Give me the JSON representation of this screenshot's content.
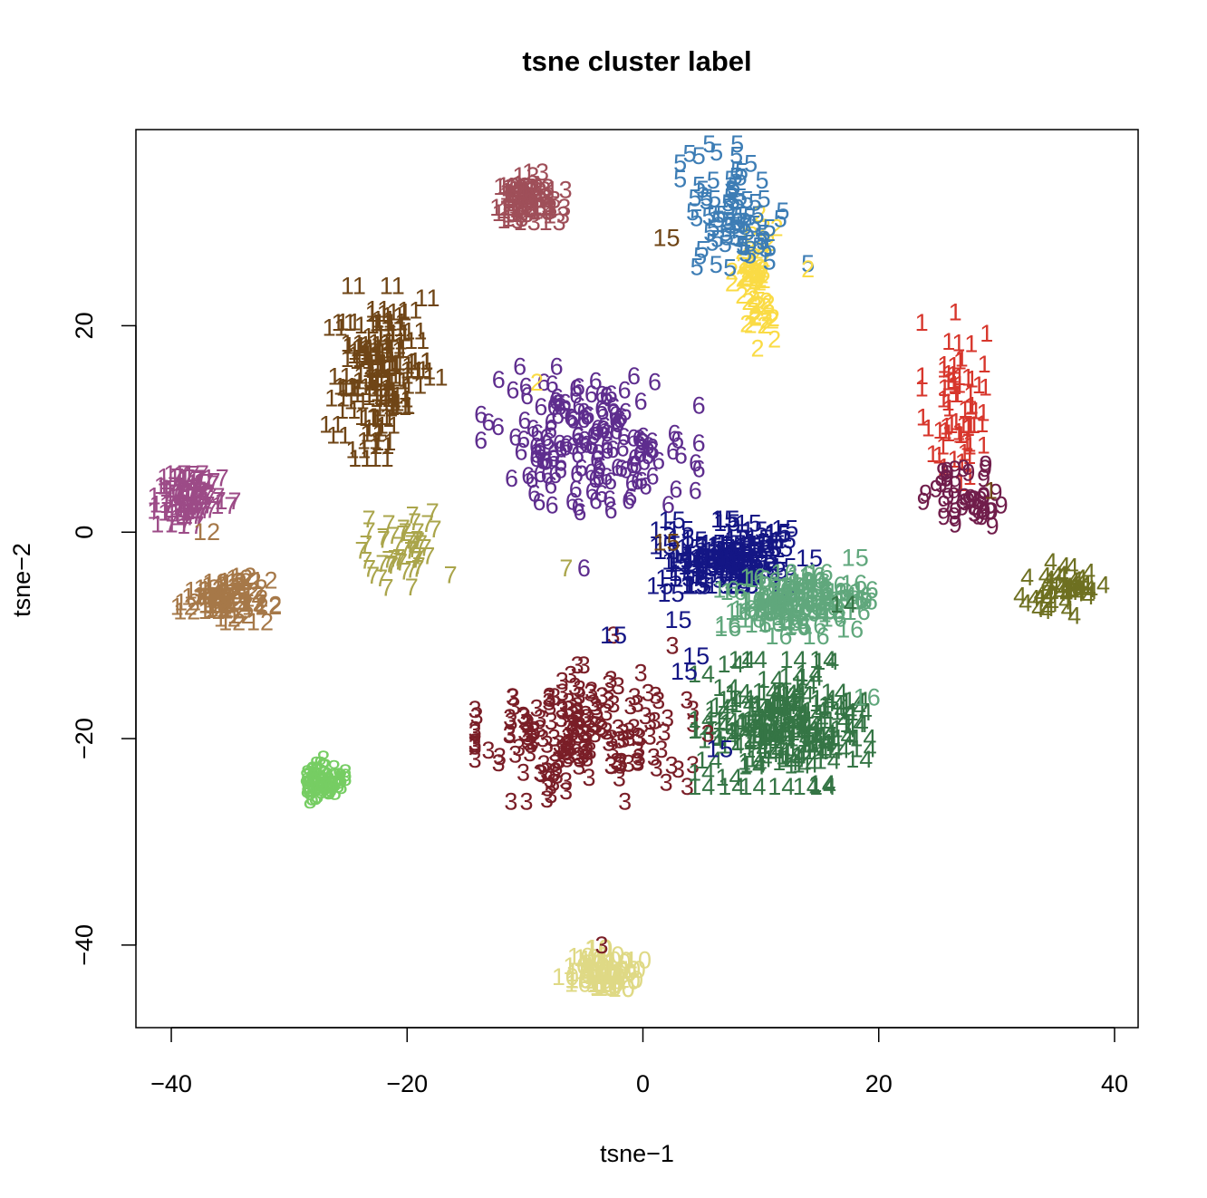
{
  "chart_data": {
    "type": "scatter",
    "title": "tsne cluster label",
    "xlabel": "tsne−1",
    "ylabel": "tsne−2",
    "xlim": [
      -43,
      42
    ],
    "ylim": [
      -48,
      39
    ],
    "xticks": [
      -40,
      -20,
      0,
      20,
      40
    ],
    "yticks": [
      -40,
      -20,
      0,
      20
    ],
    "xtick_labels": [
      "−40",
      "−20",
      "0",
      "20",
      "40"
    ],
    "ytick_labels": [
      "−40",
      "−20",
      "0",
      "20"
    ],
    "grid": false,
    "legend": "none",
    "marker": "cluster-number-text",
    "clusters": [
      {
        "label": "1",
        "color": "#d7362c",
        "cx": 26.5,
        "cy": 12.5,
        "sx": 1.3,
        "sy": 4.0,
        "n": 70
      },
      {
        "label": "2",
        "color": "#fadb45",
        "cx": 9.5,
        "cy": 24.5,
        "sx": 0.9,
        "sy": 3.2,
        "n": 60
      },
      {
        "label": "3",
        "color": "#7a1e27",
        "cx": -5.0,
        "cy": -19.5,
        "sx": 4.2,
        "sy": 3.0,
        "n": 190
      },
      {
        "label": "4",
        "color": "#6e7021",
        "cx": 35.5,
        "cy": -5.5,
        "sx": 1.9,
        "sy": 1.2,
        "n": 55
      },
      {
        "label": "5",
        "color": "#3d7db5",
        "cx": 8.0,
        "cy": 31.0,
        "sx": 2.2,
        "sy": 3.0,
        "n": 85
      },
      {
        "label": "6",
        "color": "#5e2d8e",
        "cx": -4.5,
        "cy": 9.0,
        "sx": 4.2,
        "sy": 3.2,
        "n": 170
      },
      {
        "label": "7",
        "color": "#aaa54b",
        "cx": -20.5,
        "cy": -2.0,
        "sx": 1.9,
        "sy": 1.8,
        "n": 50
      },
      {
        "label": "8",
        "color": "#76cd63",
        "cx": -27.0,
        "cy": -24.0,
        "sx": 0.8,
        "sy": 0.9,
        "n": 55
      },
      {
        "label": "9",
        "color": "#701d4b",
        "cx": 27.5,
        "cy": 3.5,
        "sx": 1.8,
        "sy": 1.5,
        "n": 45
      },
      {
        "label": "10",
        "color": "#dfd985",
        "cx": -3.5,
        "cy": -42.5,
        "sx": 1.4,
        "sy": 1.0,
        "n": 50
      },
      {
        "label": "11",
        "color": "#6f4516",
        "cx": -22.0,
        "cy": 15.5,
        "sx": 2.0,
        "sy": 3.8,
        "n": 110
      },
      {
        "label": "12",
        "color": "#a67848",
        "cx": -35.5,
        "cy": -6.5,
        "sx": 1.7,
        "sy": 1.0,
        "n": 60
      },
      {
        "label": "13",
        "color": "#9f4f59",
        "cx": -10.0,
        "cy": 32.0,
        "sx": 1.3,
        "sy": 1.3,
        "n": 50
      },
      {
        "label": "14",
        "color": "#357545",
        "cx": 12.0,
        "cy": -18.5,
        "sx": 3.2,
        "sy": 2.8,
        "n": 150
      },
      {
        "label": "15",
        "color": "#141685",
        "cx": 7.5,
        "cy": -2.5,
        "sx": 3.0,
        "sy": 1.7,
        "n": 110
      },
      {
        "label": "16",
        "color": "#60a77c",
        "cx": 13.0,
        "cy": -7.0,
        "sx": 3.0,
        "sy": 1.4,
        "n": 95
      },
      {
        "label": "17",
        "color": "#9c4b87",
        "cx": -38.5,
        "cy": 3.5,
        "sx": 1.5,
        "sy": 1.3,
        "n": 55
      }
    ],
    "outliers": [
      {
        "label": "15",
        "color": "#6f4516",
        "x": 2.0,
        "y": 28.5
      },
      {
        "label": "5",
        "color": "#3d7db5",
        "x": 14.0,
        "y": 26.0
      },
      {
        "label": "2",
        "color": "#fadb45",
        "x": 14.0,
        "y": 25.5
      },
      {
        "label": "2",
        "color": "#fadb45",
        "x": 11.0,
        "y": 20.5
      },
      {
        "label": "15",
        "color": "#6f4516",
        "x": 2.0,
        "y": -1.0
      },
      {
        "label": "7",
        "color": "#aaa54b",
        "x": -6.5,
        "y": -3.5
      },
      {
        "label": "6",
        "color": "#5e2d8e",
        "x": -5.0,
        "y": -3.5
      },
      {
        "label": "3",
        "color": "#7a1e27",
        "x": -2.5,
        "y": -10.0
      },
      {
        "label": "15",
        "color": "#141685",
        "x": -2.5,
        "y": -10.0
      },
      {
        "label": "3",
        "color": "#7a1e27",
        "x": 2.5,
        "y": -11.0
      },
      {
        "label": "15",
        "color": "#141685",
        "x": 3.0,
        "y": -8.5
      },
      {
        "label": "15",
        "color": "#141685",
        "x": 4.5,
        "y": -12.0
      },
      {
        "label": "15",
        "color": "#141685",
        "x": 3.5,
        "y": -13.5
      },
      {
        "label": "15",
        "color": "#60a77c",
        "x": 18.0,
        "y": -2.5
      },
      {
        "label": "3",
        "color": "#7a1e27",
        "x": 3.0,
        "y": -23.0
      },
      {
        "label": "3",
        "color": "#7a1e27",
        "x": 5.5,
        "y": -19.5
      },
      {
        "label": "15",
        "color": "#141685",
        "x": 6.5,
        "y": -21.0
      },
      {
        "label": "3",
        "color": "#7a1e27",
        "x": -3.5,
        "y": -40.0
      },
      {
        "label": "9",
        "color": "#701d4b",
        "x": 29.5,
        "y": 2.0
      },
      {
        "label": "1",
        "color": "#6f4516",
        "x": 29.5,
        "y": 4.0
      },
      {
        "label": "2",
        "color": "#fadb45",
        "x": -9.0,
        "y": 14.5
      },
      {
        "label": "12",
        "color": "#a67848",
        "x": -37.0,
        "y": 0.0
      },
      {
        "label": "16",
        "color": "#60a77c",
        "x": 19.0,
        "y": -16.0
      },
      {
        "label": "14",
        "color": "#357545",
        "x": 17.0,
        "y": -7.0
      }
    ]
  }
}
